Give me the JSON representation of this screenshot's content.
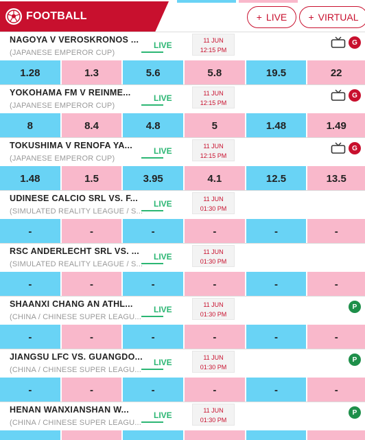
{
  "header": {
    "title": "FOOTBALL",
    "live_label": "LIVE",
    "virtual_label": "VIRTUAL",
    "plus": "+"
  },
  "colors": {
    "brand": "#c8102e",
    "live": "#2bb673",
    "odd_blue": "#69d3f5",
    "odd_pink": "#f9b8cb"
  },
  "matches": [
    {
      "teams": "NAGOYA V VEROSKRONOS ...",
      "competition": "(JAPANESE EMPEROR CUP)",
      "live": "LIVE",
      "date": "11 JUN",
      "time": "12:15 PM",
      "icons": [
        "tv-icon",
        "g-badge"
      ],
      "badge": "G",
      "odds": [
        "1.28",
        "1.3",
        "5.6",
        "5.8",
        "19.5",
        "22"
      ]
    },
    {
      "teams": "YOKOHAMA FM V REINME...",
      "competition": "(JAPANESE EMPEROR CUP)",
      "live": "LIVE",
      "date": "11 JUN",
      "time": "12:15 PM",
      "icons": [
        "tv-icon",
        "g-badge"
      ],
      "badge": "G",
      "odds": [
        "8",
        "8.4",
        "4.8",
        "5",
        "1.48",
        "1.49"
      ]
    },
    {
      "teams": "TOKUSHIMA V RENOFA YA...",
      "competition": "(JAPANESE EMPEROR CUP)",
      "live": "LIVE",
      "date": "11 JUN",
      "time": "12:15 PM",
      "icons": [
        "tv-icon",
        "g-badge"
      ],
      "badge": "G",
      "odds": [
        "1.48",
        "1.5",
        "3.95",
        "4.1",
        "12.5",
        "13.5"
      ]
    },
    {
      "teams": "UDINESE CALCIO SRL VS. F...",
      "competition": "(SIMULATED REALITY LEAGUE / S...",
      "live": "LIVE",
      "date": "11 JUN",
      "time": "01:30 PM",
      "icons": [],
      "badge": "",
      "odds": [
        "-",
        "-",
        "-",
        "-",
        "-",
        "-"
      ]
    },
    {
      "teams": "RSC ANDERLECHT SRL VS. ...",
      "competition": "(SIMULATED REALITY LEAGUE / S...",
      "live": "LIVE",
      "date": "11 JUN",
      "time": "01:30 PM",
      "icons": [],
      "badge": "",
      "odds": [
        "-",
        "-",
        "-",
        "-",
        "-",
        "-"
      ]
    },
    {
      "teams": "SHAANXI CHANG AN ATHL...",
      "competition": "(CHINA / CHINESE SUPER LEAGU...",
      "live": "LIVE",
      "date": "11 JUN",
      "time": "01:30 PM",
      "icons": [
        "p-badge"
      ],
      "badge": "P",
      "odds": [
        "-",
        "-",
        "-",
        "-",
        "-",
        "-"
      ]
    },
    {
      "teams": "JIANGSU LFC VS. GUANGDO...",
      "competition": "(CHINA / CHINESE SUPER LEAGU...",
      "live": "LIVE",
      "date": "11 JUN",
      "time": "01:30 PM",
      "icons": [
        "p-badge"
      ],
      "badge": "P",
      "odds": [
        "-",
        "-",
        "-",
        "-",
        "-",
        "-"
      ]
    },
    {
      "teams": "HENAN WANXIANSHAN W...",
      "competition": "(CHINA / CHINESE SUPER LEAGU...",
      "live": "LIVE",
      "date": "11 JUN",
      "time": "01:30 PM",
      "icons": [
        "p-badge"
      ],
      "badge": "P",
      "odds": [
        "",
        "",
        "",
        "",
        "",
        ""
      ]
    }
  ]
}
